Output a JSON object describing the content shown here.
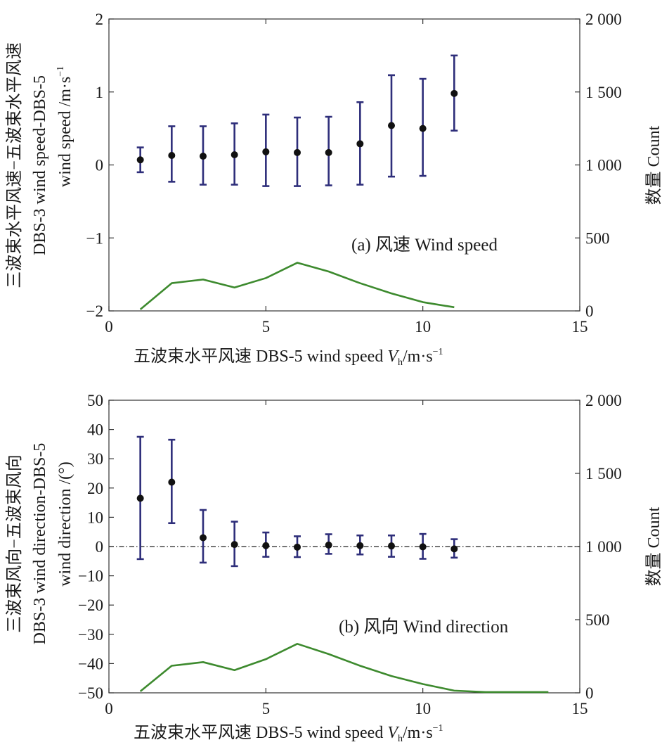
{
  "colors": {
    "errorbar": "#2e2e7a",
    "point": "#111111",
    "count_line": "#3d8a2e",
    "axis": "#333333"
  },
  "chart_data": [
    {
      "type": "errorbar+line",
      "panel_label": "(a) 风速 Wind speed",
      "xlabel_main": "五波束水平风速 DBS-5 wind speed ",
      "xlabel_var": "V",
      "xlabel_sub": "h",
      "xlabel_unit": "/m·s",
      "xlabel_sup": "−1",
      "ylabel_left_lines": [
        "三波束水平风速−五波束水平风速",
        "DBS-3 wind speed-DBS-5",
        "wind speed /m·s"
      ],
      "ylabel_left_sup": "−1",
      "ylabel_right": "数量 Count",
      "xlim": [
        0,
        15
      ],
      "ylim": [
        -2,
        2
      ],
      "ylim_right": [
        0,
        2000
      ],
      "xticks": [
        "0",
        "5",
        "10",
        "15"
      ],
      "yticks": [
        "−2",
        "−1",
        "0",
        "1",
        "2"
      ],
      "yticks_right": [
        "0",
        "500",
        "1 000",
        "1 500",
        "2 000"
      ],
      "zero_line": false,
      "series": [
        {
          "name": "difference",
          "x": [
            1,
            2,
            3,
            4,
            5,
            6,
            7,
            8,
            9,
            10,
            11
          ],
          "mean": [
            0.07,
            0.13,
            0.12,
            0.14,
            0.18,
            0.17,
            0.17,
            0.29,
            0.54,
            0.5,
            0.98
          ],
          "upper": [
            0.24,
            0.53,
            0.53,
            0.57,
            0.69,
            0.65,
            0.66,
            0.86,
            1.23,
            1.18,
            1.5
          ],
          "lower": [
            -0.1,
            -0.23,
            -0.27,
            -0.27,
            -0.29,
            -0.29,
            -0.28,
            -0.27,
            -0.16,
            -0.15,
            0.47
          ]
        },
        {
          "name": "count",
          "x": [
            1,
            2,
            3,
            4,
            5,
            6,
            7,
            8,
            9,
            10,
            11
          ],
          "values": [
            10,
            190,
            215,
            160,
            225,
            330,
            270,
            190,
            120,
            60,
            25
          ]
        }
      ]
    },
    {
      "type": "errorbar+line",
      "panel_label": "(b) 风向 Wind direction",
      "xlabel_main": "五波束水平风速 DBS-5 wind speed ",
      "xlabel_var": "V",
      "xlabel_sub": "h",
      "xlabel_unit": "/m·s",
      "xlabel_sup": "−1",
      "ylabel_left_lines": [
        "三波束风向−五波束风向",
        "DBS-3 wind direction-DBS-5",
        "wind direction /(°)"
      ],
      "ylabel_left_sup": "",
      "ylabel_right": "数量 Count",
      "xlim": [
        0,
        15
      ],
      "ylim": [
        -50,
        50
      ],
      "ylim_right": [
        0,
        2000
      ],
      "xticks": [
        "0",
        "5",
        "10",
        "15"
      ],
      "yticks": [
        "−50",
        "−40",
        "−30",
        "−20",
        "−10",
        "0",
        "10",
        "20",
        "30",
        "40",
        "50"
      ],
      "yticks_right": [
        "0",
        "500",
        "1 000",
        "1 500",
        "2 000"
      ],
      "zero_line": true,
      "series": [
        {
          "name": "difference",
          "x": [
            1,
            2,
            3,
            4,
            5,
            6,
            7,
            8,
            9,
            10,
            11
          ],
          "mean": [
            16.5,
            22,
            3,
            0.7,
            0.3,
            -0.2,
            0.5,
            0.3,
            0.2,
            -0.1,
            -0.8
          ],
          "upper": [
            37.5,
            36.5,
            12.5,
            8.5,
            4.8,
            3.5,
            4.2,
            3.8,
            3.8,
            4.3,
            2.5
          ],
          "lower": [
            -4.3,
            8,
            -5.5,
            -6.7,
            -3.5,
            -3.6,
            -2.5,
            -2.7,
            -3.5,
            -4.2,
            -3.8
          ]
        },
        {
          "name": "count",
          "x": [
            1,
            2,
            3,
            4,
            5,
            6,
            7,
            8,
            9,
            10,
            11,
            12,
            13,
            14
          ],
          "values": [
            10,
            185,
            210,
            155,
            230,
            335,
            265,
            185,
            115,
            60,
            15,
            5,
            5,
            5
          ]
        }
      ]
    }
  ]
}
